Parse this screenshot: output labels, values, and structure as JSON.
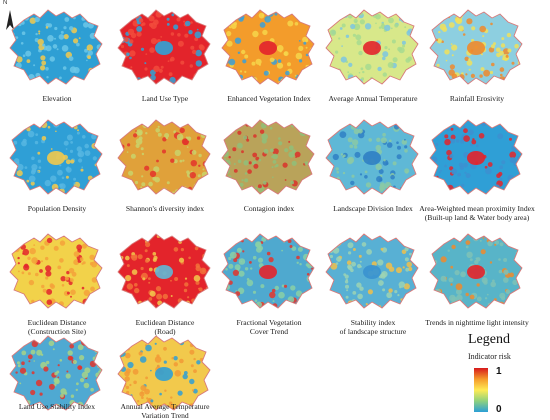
{
  "north": {
    "label": "N"
  },
  "panels": [
    {
      "id": "elevation",
      "caption": [
        "Elevation"
      ],
      "fill": "#2e9fd4",
      "noise": "#6cc7e8",
      "speck": "#f2c94c",
      "center": ""
    },
    {
      "id": "land-use-type",
      "caption": [
        "Land Use Type"
      ],
      "fill": "#e3242b",
      "noise": "#f24b3c",
      "speck": "#2fa3d8",
      "center": "#2fa3d8"
    },
    {
      "id": "enhanced-vegetation-index",
      "caption": [
        "Enhanced Vegetation Index"
      ],
      "fill": "#f39c2b",
      "noise": "#f6d64a",
      "speck": "#3aa0d8",
      "center": "#e3242b"
    },
    {
      "id": "average-annual-temperature",
      "caption": [
        "Average Annual Temperature"
      ],
      "fill": "#d8e88a",
      "noise": "#a7da8f",
      "speck": "#7cc6e0",
      "center": "#e3242b"
    },
    {
      "id": "rainfall-erosivity",
      "caption": [
        "Rainfall Erosivity"
      ],
      "fill": "#8dcfe0",
      "noise": "#f0e05a",
      "speck": "#f08a2c",
      "center": "#f08a2c"
    },
    {
      "id": "population-density",
      "caption": [
        "Population Density"
      ],
      "fill": "#2f9fd6",
      "noise": "#56b6e2",
      "speck": "#f2c94c",
      "center": "#f2c94c"
    },
    {
      "id": "shannons-diversity-index",
      "caption": [
        "Shannon's diversity index"
      ],
      "fill": "#e0a13a",
      "noise": "#c9d36b",
      "speck": "#e3342b",
      "center": ""
    },
    {
      "id": "contagion-index",
      "caption": [
        "Contagion index"
      ],
      "fill": "#b9a35a",
      "noise": "#8fbf7a",
      "speck": "#d9332b",
      "center": ""
    },
    {
      "id": "landscape-division-index",
      "caption": [
        "Landscape Division Index"
      ],
      "fill": "#5fb8d6",
      "noise": "#8bc9a4",
      "speck": "#2f7fc4",
      "center": "#2f7fc4"
    },
    {
      "id": "area-weighted-mean-proximity-index",
      "caption": [
        "Area-Weighted mean proximity Index",
        "(Built-up land & Water body area)"
      ],
      "fill": "#2f9fd6",
      "noise": "#3d8fd0",
      "speck": "#e3242b",
      "center": "#e3242b"
    },
    {
      "id": "euclidean-distance-construction-site",
      "caption": [
        "Euclidean Distance",
        "(Construction Site)"
      ],
      "fill": "#f2d24a",
      "noise": "#f5a23a",
      "speck": "#e3242b",
      "center": ""
    },
    {
      "id": "euclidean-distance-road",
      "caption": [
        "Euclidean Distance",
        "(Road)"
      ],
      "fill": "#e3242b",
      "noise": "#f2723a",
      "speck": "#f2c94c",
      "center": "#5fb8d6"
    },
    {
      "id": "fractional-vegetation-cover-trend",
      "caption": [
        "Fractional Vegetation",
        "Cover Trend"
      ],
      "fill": "#4fa9cf",
      "noise": "#8ad0a6",
      "speck": "#e3342b",
      "center": "#e3242b"
    },
    {
      "id": "stability-index-landscape-structure",
      "caption": [
        "Stability index",
        "of landscape structure"
      ],
      "fill": "#58b0d4",
      "noise": "#9cd3b4",
      "speck": "#f0c04a",
      "center": "#3a92cf"
    },
    {
      "id": "trends-nighttime-light-intensity",
      "caption": [
        "Trends in nighttime light intensity"
      ],
      "fill": "#58b4c8",
      "noise": "#7fc2b6",
      "speck": "#f08a2c",
      "center": "#e3242b"
    },
    {
      "id": "land-use-stability-index",
      "caption": [
        "Land Use Stability Index"
      ],
      "fill": "#4fa9d2",
      "noise": "#a6d488",
      "speck": "#e3342b",
      "center": ""
    },
    {
      "id": "annual-average-temperature-variation-trend",
      "caption": [
        "Annual Average Temperature",
        "Variation Trend"
      ],
      "fill": "#f2c94c",
      "noise": "#f29a36",
      "speck": "#2f9fd6",
      "center": "#2f9fd6"
    }
  ],
  "legend": {
    "title": "Legend",
    "subtitle": "Indicator risk",
    "max_label": "1",
    "min_label": "0",
    "colors": [
      "#d7191c",
      "#f59a2a",
      "#ffeb55",
      "#8fd17e",
      "#2b9fd6"
    ]
  }
}
